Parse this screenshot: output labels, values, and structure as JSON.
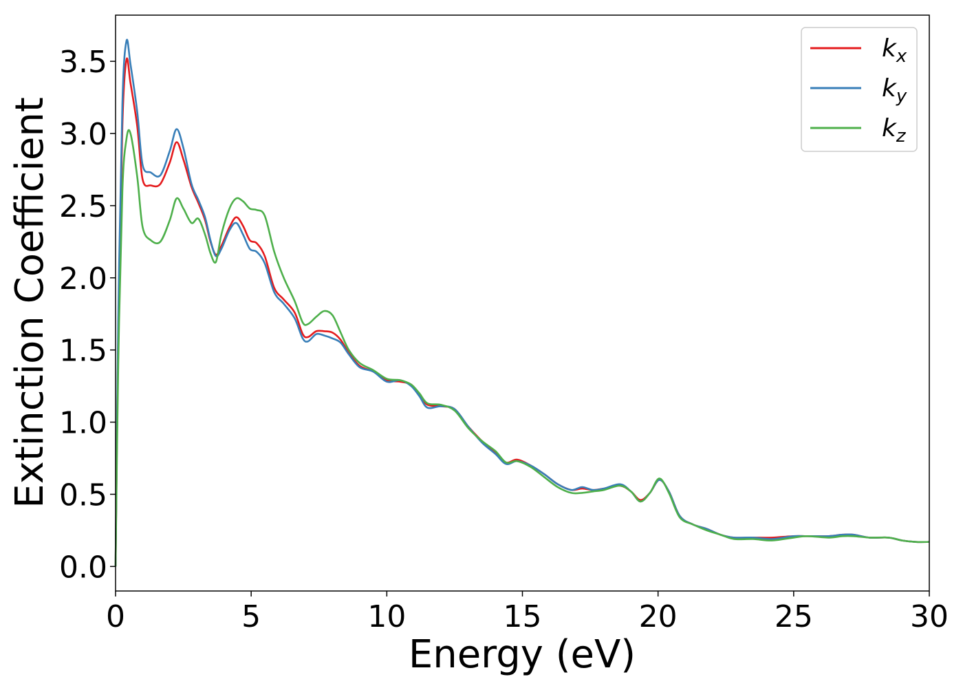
{
  "chart_data": {
    "type": "line",
    "xlabel": "Energy (eV)",
    "ylabel": "Extinction Coefficient",
    "xlim": [
      0,
      30
    ],
    "ylim": [
      -0.17,
      3.82
    ],
    "xticks": [
      0,
      5,
      10,
      15,
      20,
      25,
      30
    ],
    "xtick_labels": [
      "0",
      "5",
      "10",
      "15",
      "20",
      "25",
      "30"
    ],
    "yticks": [
      0.0,
      0.5,
      1.0,
      1.5,
      2.0,
      2.5,
      3.0,
      3.5
    ],
    "ytick_labels": [
      "0.0",
      "0.5",
      "1.0",
      "1.5",
      "2.0",
      "2.5",
      "3.0",
      "3.5"
    ],
    "grid": false,
    "legend_position": "top-right",
    "series": [
      {
        "name": "k",
        "subscript": "x",
        "color": "#e41a1c",
        "x": [
          0.0,
          0.1,
          0.25,
          0.4,
          0.55,
          0.8,
          1.0,
          1.3,
          1.65,
          2.0,
          2.25,
          2.5,
          2.8,
          3.05,
          3.3,
          3.5,
          3.7,
          3.9,
          4.2,
          4.45,
          4.7,
          4.95,
          5.2,
          5.5,
          5.85,
          6.2,
          6.6,
          6.9,
          7.1,
          7.4,
          7.7,
          8.0,
          8.3,
          8.6,
          9.0,
          9.5,
          10.0,
          10.5,
          10.9,
          11.2,
          11.5,
          12.0,
          12.5,
          13.0,
          13.5,
          14.0,
          14.4,
          14.8,
          15.3,
          15.8,
          16.3,
          16.8,
          17.2,
          17.6,
          18.0,
          18.6,
          19.0,
          19.35,
          19.7,
          20.05,
          20.4,
          20.8,
          21.3,
          21.8,
          22.3,
          22.8,
          23.5,
          24.2,
          25.0,
          25.5,
          26.3,
          26.8,
          27.2,
          27.8,
          28.5,
          29.0,
          29.5,
          30.0
        ],
        "values": [
          0.0,
          1.6,
          3.05,
          3.51,
          3.35,
          3.05,
          2.68,
          2.64,
          2.65,
          2.8,
          2.94,
          2.82,
          2.63,
          2.52,
          2.4,
          2.25,
          2.16,
          2.22,
          2.35,
          2.42,
          2.36,
          2.26,
          2.24,
          2.15,
          1.93,
          1.85,
          1.76,
          1.61,
          1.59,
          1.63,
          1.63,
          1.62,
          1.57,
          1.48,
          1.39,
          1.35,
          1.29,
          1.28,
          1.26,
          1.19,
          1.12,
          1.11,
          1.09,
          0.97,
          0.87,
          0.79,
          0.72,
          0.74,
          0.7,
          0.64,
          0.57,
          0.53,
          0.54,
          0.53,
          0.54,
          0.56,
          0.52,
          0.46,
          0.51,
          0.6,
          0.52,
          0.35,
          0.29,
          0.26,
          0.22,
          0.2,
          0.2,
          0.2,
          0.21,
          0.21,
          0.21,
          0.22,
          0.22,
          0.2,
          0.2,
          0.18,
          0.17,
          0.17
        ]
      },
      {
        "name": "k",
        "subscript": "y",
        "color": "#377eb8",
        "x": [
          0.0,
          0.1,
          0.25,
          0.4,
          0.55,
          0.8,
          1.0,
          1.3,
          1.65,
          2.0,
          2.25,
          2.5,
          2.8,
          3.05,
          3.3,
          3.5,
          3.7,
          3.9,
          4.2,
          4.45,
          4.7,
          4.95,
          5.2,
          5.5,
          5.85,
          6.2,
          6.6,
          6.9,
          7.1,
          7.4,
          7.7,
          8.0,
          8.3,
          8.6,
          9.0,
          9.5,
          10.0,
          10.5,
          10.9,
          11.2,
          11.5,
          12.0,
          12.5,
          13.0,
          13.5,
          14.0,
          14.4,
          14.8,
          15.3,
          15.8,
          16.3,
          16.8,
          17.2,
          17.6,
          18.0,
          18.6,
          19.0,
          19.35,
          19.7,
          20.05,
          20.4,
          20.8,
          21.3,
          21.8,
          22.3,
          22.8,
          23.5,
          24.2,
          25.0,
          25.5,
          26.3,
          26.8,
          27.2,
          27.8,
          28.5,
          29.0,
          29.5,
          30.0
        ],
        "values": [
          0.0,
          1.7,
          3.2,
          3.64,
          3.48,
          3.15,
          2.78,
          2.73,
          2.71,
          2.88,
          3.03,
          2.9,
          2.65,
          2.54,
          2.42,
          2.26,
          2.15,
          2.2,
          2.33,
          2.38,
          2.3,
          2.2,
          2.18,
          2.1,
          1.9,
          1.82,
          1.72,
          1.58,
          1.56,
          1.61,
          1.6,
          1.58,
          1.55,
          1.47,
          1.38,
          1.35,
          1.28,
          1.29,
          1.25,
          1.18,
          1.1,
          1.11,
          1.09,
          0.97,
          0.86,
          0.78,
          0.71,
          0.73,
          0.7,
          0.64,
          0.57,
          0.53,
          0.55,
          0.53,
          0.54,
          0.57,
          0.52,
          0.45,
          0.51,
          0.6,
          0.52,
          0.35,
          0.29,
          0.26,
          0.22,
          0.2,
          0.2,
          0.19,
          0.21,
          0.21,
          0.21,
          0.22,
          0.22,
          0.2,
          0.2,
          0.18,
          0.17,
          0.17
        ]
      },
      {
        "name": "k",
        "subscript": "z",
        "color": "#4daf4a",
        "x": [
          0.0,
          0.1,
          0.25,
          0.4,
          0.55,
          0.8,
          1.0,
          1.3,
          1.65,
          2.0,
          2.25,
          2.5,
          2.8,
          3.05,
          3.3,
          3.5,
          3.7,
          3.9,
          4.2,
          4.45,
          4.7,
          4.95,
          5.2,
          5.5,
          5.85,
          6.2,
          6.6,
          6.9,
          7.1,
          7.4,
          7.7,
          8.0,
          8.3,
          8.6,
          9.0,
          9.5,
          10.0,
          10.5,
          10.9,
          11.2,
          11.5,
          12.0,
          12.5,
          13.0,
          13.5,
          14.0,
          14.4,
          14.8,
          15.3,
          15.8,
          16.3,
          16.8,
          17.2,
          17.6,
          18.0,
          18.6,
          19.0,
          19.35,
          19.7,
          20.05,
          20.4,
          20.8,
          21.3,
          21.8,
          22.3,
          22.8,
          23.5,
          24.2,
          25.0,
          25.5,
          26.3,
          26.8,
          27.2,
          27.8,
          28.5,
          29.0,
          29.5,
          30.0
        ],
        "values": [
          0.0,
          1.4,
          2.6,
          2.96,
          3.0,
          2.7,
          2.35,
          2.26,
          2.25,
          2.4,
          2.55,
          2.48,
          2.38,
          2.41,
          2.3,
          2.17,
          2.11,
          2.3,
          2.48,
          2.55,
          2.53,
          2.48,
          2.47,
          2.43,
          2.18,
          2.0,
          1.84,
          1.69,
          1.68,
          1.73,
          1.77,
          1.74,
          1.62,
          1.5,
          1.41,
          1.36,
          1.3,
          1.29,
          1.26,
          1.2,
          1.13,
          1.12,
          1.08,
          0.96,
          0.87,
          0.8,
          0.72,
          0.73,
          0.69,
          0.62,
          0.55,
          0.51,
          0.51,
          0.52,
          0.53,
          0.56,
          0.52,
          0.45,
          0.51,
          0.61,
          0.51,
          0.34,
          0.29,
          0.25,
          0.22,
          0.19,
          0.19,
          0.18,
          0.2,
          0.21,
          0.2,
          0.21,
          0.21,
          0.2,
          0.2,
          0.18,
          0.17,
          0.17
        ]
      }
    ]
  }
}
